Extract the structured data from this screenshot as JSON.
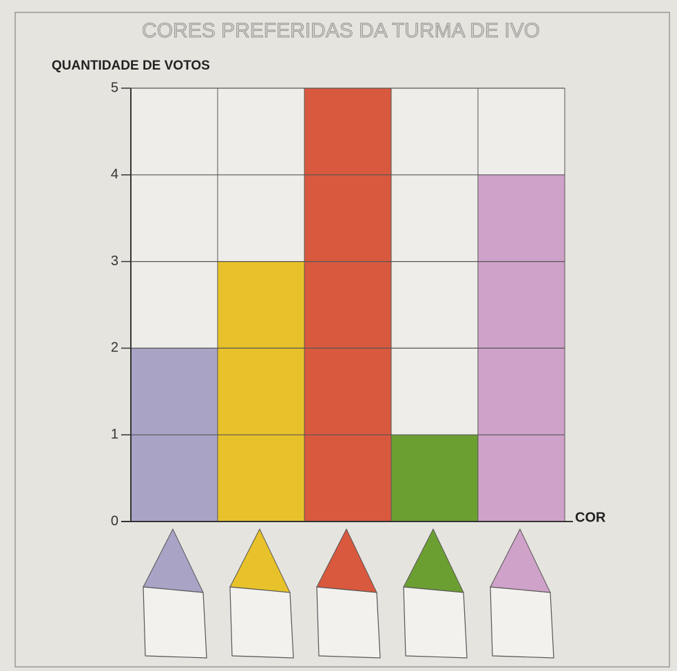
{
  "chart_data": {
    "type": "bar",
    "title": "CORES PREFERIDAS DA TURMA DE IVO",
    "y_label": "QUANTIDADE DE VOTOS",
    "x_label": "COR",
    "categories": [
      null,
      null,
      null,
      null,
      null
    ],
    "values": [
      2,
      3,
      5,
      1,
      4
    ],
    "colors": [
      "#a9a3c6",
      "#e8c22a",
      "#d9593e",
      "#6c9f32",
      "#cfa2c9"
    ],
    "ylim": [
      0,
      5
    ],
    "yticks": [
      0,
      1,
      2,
      3,
      4,
      5
    ],
    "grid": true
  }
}
